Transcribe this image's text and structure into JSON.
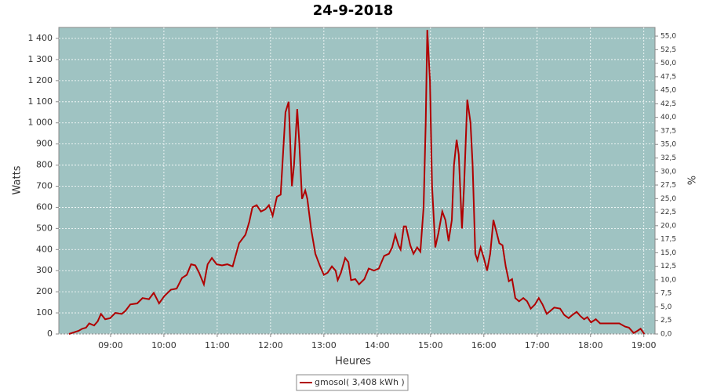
{
  "chart_data": {
    "type": "line",
    "title": "24-9-2018",
    "x_label": "Heures",
    "y_label": "Watts",
    "y2_label": "%",
    "x": [
      8.22,
      8.4,
      8.47,
      8.54,
      8.6,
      8.69,
      8.76,
      8.82,
      8.9,
      8.99,
      9.09,
      9.21,
      9.28,
      9.37,
      9.5,
      9.6,
      9.72,
      9.81,
      9.91,
      10.01,
      10.13,
      10.24,
      10.34,
      10.43,
      10.51,
      10.59,
      10.66,
      10.75,
      10.82,
      10.9,
      10.99,
      11.09,
      11.19,
      11.29,
      11.41,
      11.53,
      11.6,
      11.66,
      11.74,
      11.82,
      11.9,
      11.97,
      12.04,
      12.12,
      12.19,
      12.28,
      12.34,
      12.4,
      12.44,
      12.5,
      12.54,
      12.59,
      12.65,
      12.69,
      12.76,
      12.84,
      12.93,
      13.0,
      13.07,
      13.15,
      13.22,
      13.26,
      13.32,
      13.4,
      13.46,
      13.51,
      13.59,
      13.66,
      13.76,
      13.84,
      13.94,
      14.03,
      14.13,
      14.22,
      14.28,
      14.34,
      14.4,
      14.44,
      14.5,
      14.54,
      14.62,
      14.68,
      14.75,
      14.81,
      14.87,
      14.91,
      14.94,
      14.99,
      15.03,
      15.09,
      15.15,
      15.22,
      15.28,
      15.34,
      15.4,
      15.44,
      15.49,
      15.53,
      15.59,
      15.63,
      15.69,
      15.75,
      15.79,
      15.84,
      15.88,
      15.94,
      16.0,
      16.06,
      16.12,
      16.18,
      16.24,
      16.29,
      16.35,
      16.41,
      16.47,
      16.53,
      16.59,
      16.66,
      16.74,
      16.81,
      16.88,
      16.96,
      17.03,
      17.1,
      17.18,
      17.25,
      17.32,
      17.43,
      17.51,
      17.59,
      17.66,
      17.74,
      17.81,
      17.88,
      17.94,
      18.01,
      18.1,
      18.18,
      18.25,
      18.4,
      18.54,
      18.65,
      18.72,
      18.81,
      18.88,
      18.94,
      19.01
    ],
    "series": [
      {
        "name": "gmosol( 3,408 kWh )",
        "color": "#b00000",
        "values": [
          0,
          15,
          25,
          30,
          50,
          40,
          60,
          95,
          70,
          75,
          100,
          95,
          110,
          140,
          145,
          170,
          165,
          195,
          145,
          180,
          210,
          215,
          265,
          280,
          330,
          325,
          290,
          235,
          330,
          360,
          330,
          325,
          330,
          320,
          430,
          470,
          530,
          600,
          610,
          580,
          590,
          610,
          560,
          650,
          660,
          1050,
          1100,
          700,
          800,
          1065,
          900,
          640,
          680,
          640,
          500,
          380,
          320,
          280,
          290,
          320,
          300,
          255,
          290,
          360,
          340,
          255,
          260,
          235,
          260,
          310,
          300,
          310,
          370,
          380,
          410,
          470,
          420,
          400,
          510,
          510,
          420,
          380,
          410,
          390,
          600,
          1000,
          1440,
          1200,
          700,
          410,
          480,
          580,
          540,
          440,
          540,
          800,
          920,
          850,
          500,
          700,
          1110,
          1000,
          800,
          380,
          350,
          410,
          360,
          300,
          380,
          540,
          480,
          430,
          420,
          320,
          250,
          260,
          170,
          155,
          170,
          155,
          120,
          140,
          170,
          140,
          95,
          110,
          125,
          120,
          90,
          75,
          90,
          105,
          85,
          70,
          80,
          55,
          70,
          50,
          50,
          50,
          50,
          35,
          30,
          5,
          15,
          25,
          0
        ]
      }
    ],
    "xlim": [
      8.03,
      19.21
    ],
    "xticks": [
      {
        "value": 9,
        "label": "09:00"
      },
      {
        "value": 10,
        "label": "10:00"
      },
      {
        "value": 11,
        "label": "11:00"
      },
      {
        "value": 12,
        "label": "12:00"
      },
      {
        "value": 13,
        "label": "13:00"
      },
      {
        "value": 14,
        "label": "14:00"
      },
      {
        "value": 15,
        "label": "15:00"
      },
      {
        "value": 16,
        "label": "16:00"
      },
      {
        "value": 17,
        "label": "17:00"
      },
      {
        "value": 18,
        "label": "18:00"
      },
      {
        "value": 19,
        "label": "19:00"
      }
    ],
    "ylim": [
      0,
      1452
    ],
    "yticks": [
      0,
      100,
      200,
      300,
      400,
      500,
      600,
      700,
      800,
      900,
      {
        "value": 1000,
        "label": "1 000"
      },
      {
        "value": 1100,
        "label": "1 100"
      },
      {
        "value": 1200,
        "label": "1 200"
      },
      {
        "value": 1300,
        "label": "1 300"
      },
      {
        "value": 1400,
        "label": "1 400"
      }
    ],
    "y2lim": [
      0,
      56.6
    ],
    "y2ticks": [
      {
        "value": 0,
        "label": "0,0"
      },
      {
        "value": 2.5,
        "label": "2,5"
      },
      {
        "value": 5,
        "label": "5,0"
      },
      {
        "value": 7.5,
        "label": "7,5"
      },
      {
        "value": 10,
        "label": "10,0"
      },
      {
        "value": 12.5,
        "label": "12,5"
      },
      {
        "value": 15,
        "label": "15,0"
      },
      {
        "value": 17.5,
        "label": "17,5"
      },
      {
        "value": 20,
        "label": "20,0"
      },
      {
        "value": 22.5,
        "label": "22,5"
      },
      {
        "value": 25,
        "label": "25,0"
      },
      {
        "value": 27.5,
        "label": "27,5"
      },
      {
        "value": 30,
        "label": "30,0"
      },
      {
        "value": 32.5,
        "label": "32,5"
      },
      {
        "value": 35,
        "label": "35,0"
      },
      {
        "value": 37.5,
        "label": "37,5"
      },
      {
        "value": 40,
        "label": "40,0"
      },
      {
        "value": 42.5,
        "label": "42,5"
      },
      {
        "value": 45,
        "label": "45,0"
      },
      {
        "value": 47.5,
        "label": "47,5"
      },
      {
        "value": 50,
        "label": "50,0"
      },
      {
        "value": 52.5,
        "label": "52,5"
      },
      {
        "value": 55,
        "label": "55,0"
      }
    ],
    "grid": true,
    "background": "#9fc3c2",
    "legend": "bottom"
  }
}
